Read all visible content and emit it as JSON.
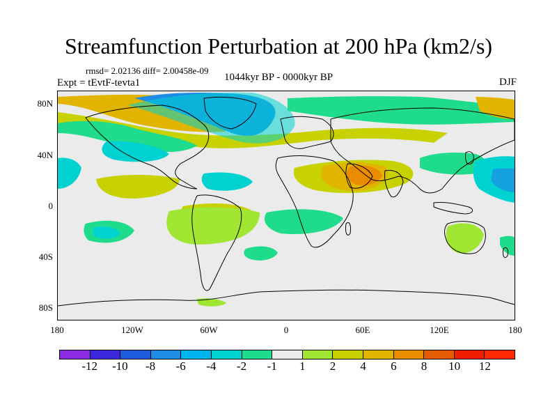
{
  "title": "Streamfunction Perturbation at 200 hPa (km2/s)",
  "stats": "rmsd= 2.02136 diff= 2.00458e-09",
  "experiment": "Expt = tEvtF-tevta1",
  "period": "1044kyr BP - 0000kyr BP",
  "season": "DJF",
  "map": {
    "y_labels": [
      "80N",
      "40N",
      "0",
      "40S",
      "80S"
    ],
    "x_labels": [
      "180",
      "120W",
      "60W",
      "0",
      "60E",
      "120E",
      "180"
    ]
  },
  "colorbar": {
    "colors": [
      "#8a2be2",
      "#3c28dc",
      "#1e5adc",
      "#1e8ce6",
      "#00b4f0",
      "#00d2d2",
      "#1edc8c",
      "#ebebeb",
      "#a0e632",
      "#c8d200",
      "#e1b400",
      "#eb8c00",
      "#e65a00",
      "#f01e00",
      "#ff2800"
    ],
    "labels": [
      "-12",
      "-10",
      "-8",
      "-6",
      "-4",
      "-2",
      "-1",
      "1",
      "2",
      "4",
      "6",
      "8",
      "10",
      "12"
    ]
  },
  "shading": {
    "neutral": "#ebebeb",
    "cyan": "#1edc8c",
    "light_blue": "#00d2d2",
    "blue": "#1e8ce6",
    "yellow_green": "#a0e632",
    "yellow": "#c8d200",
    "orange": "#e1b400",
    "dark_orange": "#eb8c00"
  }
}
